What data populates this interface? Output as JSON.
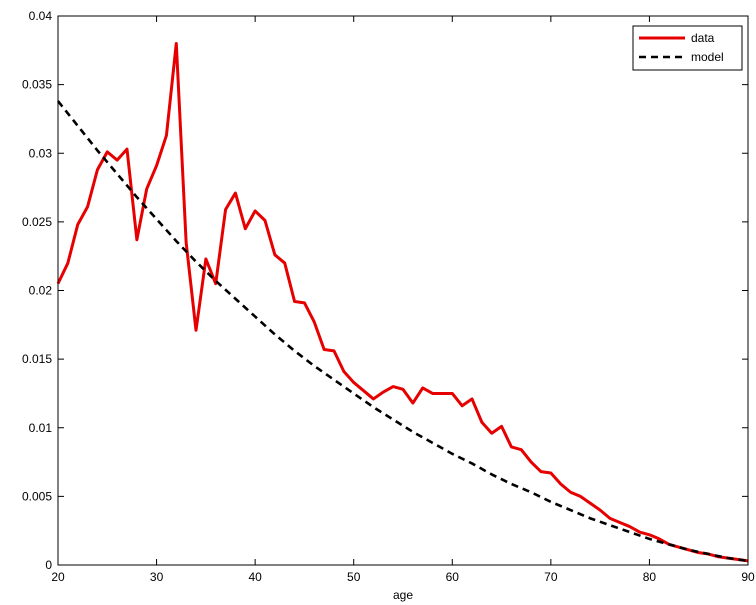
{
  "chart_data": {
    "type": "line",
    "xlabel": "age",
    "ylabel": "",
    "title": "",
    "xlim": [
      20,
      90
    ],
    "ylim": [
      0,
      0.04
    ],
    "xticks": [
      20,
      30,
      40,
      50,
      60,
      70,
      80,
      90
    ],
    "xtick_labels": [
      "20",
      "30",
      "40",
      "50",
      "60",
      "70",
      "80",
      "90"
    ],
    "yticks": [
      0,
      0.005,
      0.01,
      0.015,
      0.02,
      0.025,
      0.03,
      0.035,
      0.04
    ],
    "ytick_labels": [
      "0",
      "0.005",
      "0.01",
      "0.015",
      "0.02",
      "0.025",
      "0.03",
      "0.035",
      "0.04"
    ],
    "grid": false,
    "legend_position": "top-right",
    "series": [
      {
        "name": "data",
        "color": "#e60000",
        "style": "solid",
        "x": [
          20,
          21,
          22,
          23,
          24,
          25,
          26,
          27,
          28,
          29,
          30,
          31,
          32,
          33,
          34,
          35,
          36,
          37,
          38,
          39,
          40,
          41,
          42,
          43,
          44,
          45,
          46,
          47,
          48,
          49,
          50,
          51,
          52,
          53,
          54,
          55,
          56,
          57,
          58,
          59,
          60,
          61,
          62,
          63,
          64,
          65,
          66,
          67,
          68,
          69,
          70,
          71,
          72,
          73,
          74,
          75,
          76,
          77,
          78,
          79,
          80,
          81,
          82,
          83,
          84,
          85,
          86,
          87,
          88,
          89,
          90
        ],
        "values": [
          0.0205,
          0.022,
          0.0248,
          0.0261,
          0.0288,
          0.0301,
          0.0295,
          0.0303,
          0.0237,
          0.0274,
          0.0291,
          0.0313,
          0.038,
          0.0235,
          0.0171,
          0.0223,
          0.0205,
          0.0259,
          0.0271,
          0.0245,
          0.0258,
          0.0251,
          0.0226,
          0.022,
          0.0192,
          0.0191,
          0.0177,
          0.0157,
          0.0156,
          0.0141,
          0.0133,
          0.0127,
          0.0121,
          0.0126,
          0.013,
          0.0128,
          0.0118,
          0.0129,
          0.0125,
          0.0125,
          0.0125,
          0.0116,
          0.0121,
          0.0104,
          0.0096,
          0.0101,
          0.0086,
          0.0084,
          0.0075,
          0.0068,
          0.0067,
          0.0059,
          0.0053,
          0.005,
          0.0045,
          0.004,
          0.0034,
          0.0031,
          0.0028,
          0.0024,
          0.0022,
          0.0019,
          0.0015,
          0.0013,
          0.0011,
          0.0009,
          0.0008,
          0.0006,
          0.0005,
          0.0004,
          0.0003
        ]
      },
      {
        "name": "model",
        "color": "#000000",
        "style": "dashed",
        "x": [
          20,
          22,
          24,
          26,
          28,
          30,
          32,
          34,
          36,
          38,
          40,
          42,
          44,
          46,
          48,
          50,
          52,
          54,
          56,
          58,
          60,
          62,
          64,
          66,
          68,
          70,
          72,
          74,
          76,
          78,
          80,
          82,
          84,
          86,
          88,
          90
        ],
        "values": [
          0.0338,
          0.032,
          0.0302,
          0.0285,
          0.0268,
          0.0252,
          0.0236,
          0.0221,
          0.0207,
          0.0194,
          0.0181,
          0.0168,
          0.0156,
          0.0145,
          0.0135,
          0.0125,
          0.0115,
          0.0106,
          0.0097,
          0.0089,
          0.0081,
          0.0074,
          0.0066,
          0.0059,
          0.0053,
          0.0046,
          0.004,
          0.0034,
          0.0029,
          0.0024,
          0.0019,
          0.0015,
          0.0011,
          0.0008,
          0.0005,
          0.0003
        ]
      }
    ]
  }
}
